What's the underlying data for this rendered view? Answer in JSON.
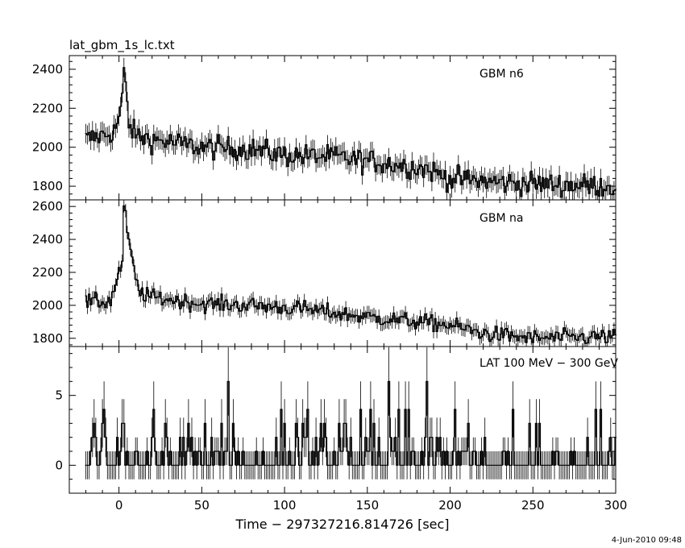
{
  "page": {
    "title": "lat_gbm_1s_lc.txt",
    "date_stamp": "4-Jun-2010 09:48",
    "xlabel": "Time − 297327216.814726 [sec]"
  },
  "chart_data": {
    "type": "line",
    "title": "lat_gbm_1s_lc.txt",
    "xlabel": "Time − 297327216.814726 [sec]",
    "xlim": [
      -30,
      300
    ],
    "x_ticks": [
      0,
      50,
      100,
      150,
      200,
      250,
      300
    ],
    "x_tick_labels": [
      "0",
      "50",
      "100",
      "150",
      "200",
      "250",
      "300"
    ],
    "x_sampling": {
      "start": -20,
      "end": 300,
      "step": 1
    },
    "panels": [
      {
        "label": "GBM n6",
        "ylim": [
          1730,
          2470
        ],
        "y_ticks": [
          1800,
          2000,
          2200,
          2400
        ],
        "y_tick_labels": [
          "1800",
          "2000",
          "2200",
          "2400"
        ],
        "profile": [
          [
            -20,
            2040
          ],
          [
            -10,
            2060
          ],
          [
            -3,
            2080
          ],
          [
            0,
            2150
          ],
          [
            2,
            2250
          ],
          [
            3,
            2380
          ],
          [
            4,
            2320
          ],
          [
            6,
            2120
          ],
          [
            10,
            2060
          ],
          [
            20,
            2040
          ],
          [
            50,
            2000
          ],
          [
            80,
            1990
          ],
          [
            100,
            1960
          ],
          [
            130,
            1950
          ],
          [
            160,
            1920
          ],
          [
            185,
            1890
          ],
          [
            200,
            1840
          ],
          [
            230,
            1820
          ],
          [
            260,
            1810
          ],
          [
            300,
            1800
          ]
        ],
        "noise": 55
      },
      {
        "label": "GBM na",
        "ylim": [
          1750,
          2640
        ],
        "y_ticks": [
          1800,
          2000,
          2200,
          2400,
          2600
        ],
        "y_tick_labels": [
          "1800",
          "2000",
          "2200",
          "2400",
          "2600"
        ],
        "profile": [
          [
            -20,
            2020
          ],
          [
            -8,
            2020
          ],
          [
            -5,
            2030
          ],
          [
            0,
            2200
          ],
          [
            2,
            2260
          ],
          [
            3,
            2590
          ],
          [
            5,
            2460
          ],
          [
            8,
            2260
          ],
          [
            12,
            2080
          ],
          [
            20,
            2050
          ],
          [
            50,
            2010
          ],
          [
            80,
            2000
          ],
          [
            110,
            1980
          ],
          [
            140,
            1940
          ],
          [
            170,
            1910
          ],
          [
            200,
            1880
          ],
          [
            220,
            1830
          ],
          [
            250,
            1800
          ],
          [
            300,
            1810
          ]
        ],
        "noise": 45
      },
      {
        "label": "LAT 100 MeV − 300 GeV",
        "ylim": [
          -2,
          8.5
        ],
        "y_ticks": [
          0,
          5
        ],
        "y_tick_labels": [
          "0",
          "5"
        ],
        "counts_distribution": {
          "0": 0.62,
          "1": 0.19,
          "2": 0.1,
          "3": 0.05,
          "4": 0.02,
          "5": 0.01,
          "6": 0.01
        },
        "error_bar": "sqrt(N)"
      }
    ]
  },
  "colors": {
    "line": "#000000",
    "background": "#ffffff"
  }
}
